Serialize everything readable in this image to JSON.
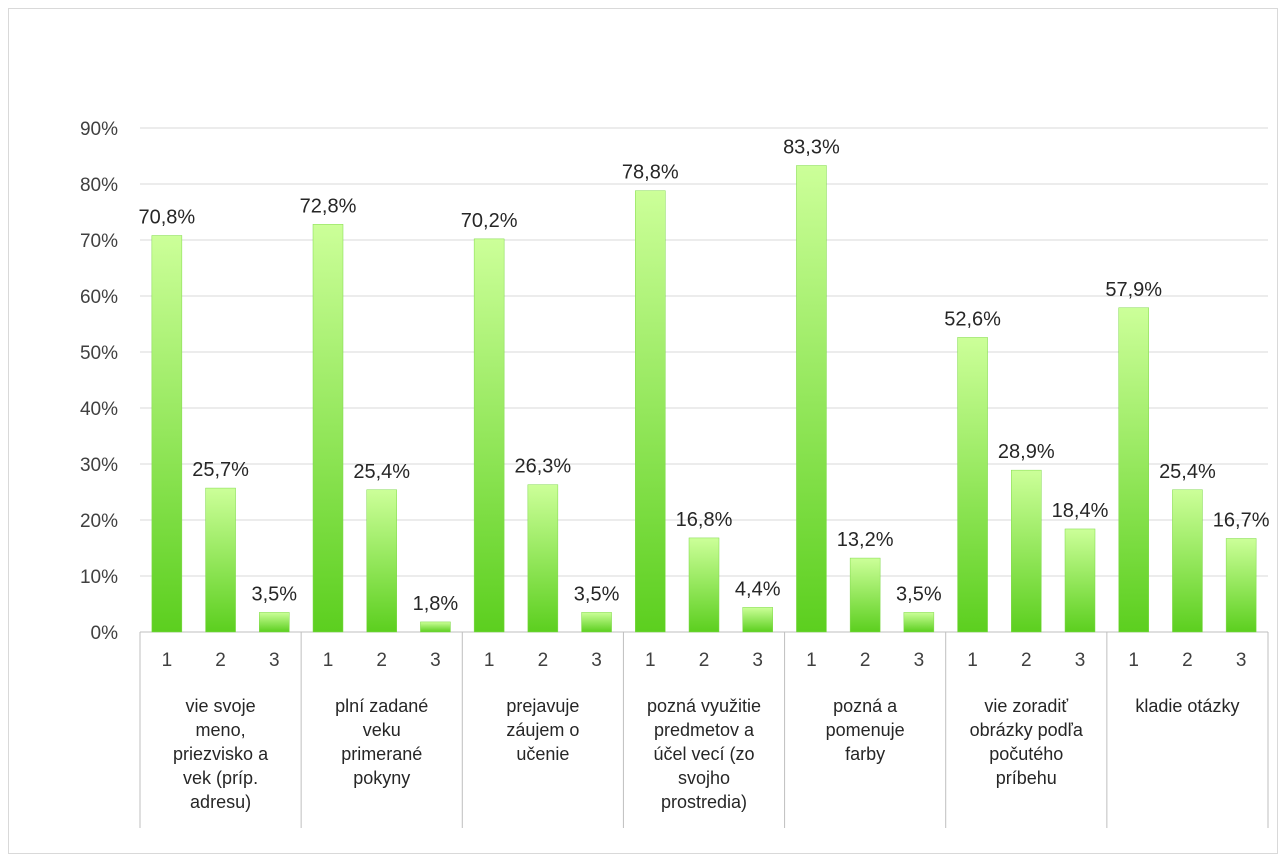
{
  "chart_data": {
    "type": "bar",
    "title": "",
    "xlabel": "",
    "ylabel": "",
    "ylim": [
      0,
      90
    ],
    "yticks": [
      "0%",
      "10%",
      "20%",
      "30%",
      "40%",
      "50%",
      "60%",
      "70%",
      "80%",
      "90%"
    ],
    "grid": true,
    "legend": "none",
    "bar_color_top": "#ccff99",
    "bar_color_bottom": "#5ccf1f",
    "groups": [
      {
        "label": "vie svoje meno, priezvisko a vek (príp. adresu)",
        "lines": [
          "vie svoje",
          "meno,",
          "priezvisko a",
          "vek (príp.",
          "adresu)"
        ],
        "sub": [
          "1",
          "2",
          "3"
        ],
        "values": [
          70.8,
          25.7,
          3.5
        ],
        "labels": [
          "70,8%",
          "25,7%",
          "3,5%"
        ]
      },
      {
        "label": "plní zadané veku primerané pokyny",
        "lines": [
          "plní zadané",
          "veku",
          "primerané",
          "pokyny"
        ],
        "sub": [
          "1",
          "2",
          "3"
        ],
        "values": [
          72.8,
          25.4,
          1.8
        ],
        "labels": [
          "72,8%",
          "25,4%",
          "1,8%"
        ]
      },
      {
        "label": "prejavuje záujem o učenie",
        "lines": [
          "prejavuje",
          "záujem o",
          "učenie"
        ],
        "sub": [
          "1",
          "2",
          "3"
        ],
        "values": [
          70.2,
          26.3,
          3.5
        ],
        "labels": [
          "70,2%",
          "26,3%",
          "3,5%"
        ]
      },
      {
        "label": "pozná využitie predmetov a účel vecí (zo svojho prostredia)",
        "lines": [
          "pozná využitie",
          "predmetov a",
          "účel vecí (zo",
          "svojho",
          "prostredia)"
        ],
        "sub": [
          "1",
          "2",
          "3"
        ],
        "values": [
          78.8,
          16.8,
          4.4
        ],
        "labels": [
          "78,8%",
          "16,8%",
          "4,4%"
        ]
      },
      {
        "label": "pozná a pomenuje farby",
        "lines": [
          "pozná a",
          "pomenuje",
          "farby"
        ],
        "sub": [
          "1",
          "2",
          "3"
        ],
        "values": [
          83.3,
          13.2,
          3.5
        ],
        "labels": [
          "83,3%",
          "13,2%",
          "3,5%"
        ]
      },
      {
        "label": "vie zoradiť obrázky podľa počutého príbehu",
        "lines": [
          "vie zoradiť",
          "obrázky podľa",
          "počutého",
          "príbehu"
        ],
        "sub": [
          "1",
          "2",
          "3"
        ],
        "values": [
          52.6,
          28.9,
          18.4
        ],
        "labels": [
          "52,6%",
          "28,9%",
          "18,4%"
        ]
      },
      {
        "label": "kladie otázky",
        "lines": [
          "kladie otázky"
        ],
        "sub": [
          "1",
          "2",
          "3"
        ],
        "values": [
          57.9,
          25.4,
          16.7
        ],
        "labels": [
          "57,9%",
          "25,4%",
          "16,7%"
        ]
      }
    ]
  }
}
